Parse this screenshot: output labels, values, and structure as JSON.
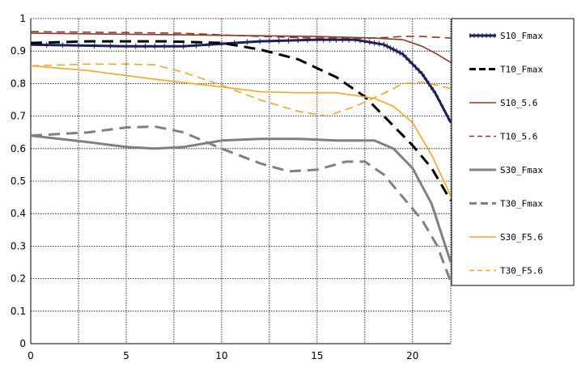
{
  "chart_data": {
    "type": "line",
    "title": "",
    "xlabel": "",
    "ylabel": "",
    "xlim": [
      0,
      22
    ],
    "ylim": [
      0,
      1
    ],
    "x_ticks": [
      0,
      5,
      10,
      15,
      20
    ],
    "y_ticks": [
      0,
      0.1,
      0.2,
      0.3,
      0.4,
      0.5,
      0.6,
      0.7,
      0.8,
      0.9,
      1
    ],
    "x_tick_labels": [
      "0",
      "5",
      "10",
      "15",
      "20"
    ],
    "y_tick_labels": [
      "0",
      "0.1",
      "0.2",
      "0.3",
      "0.4",
      "0.5",
      "0.6",
      "0.7",
      "0.8",
      "0.9",
      "1"
    ],
    "grid": true,
    "legend_position": "right",
    "series": [
      {
        "name": "S10_Fmax",
        "color": "#1a1f5e",
        "style": "solid-marked",
        "points": [
          [
            0,
            0.92
          ],
          [
            5,
            0.915
          ],
          [
            8,
            0.915
          ],
          [
            12,
            0.93
          ],
          [
            15,
            0.935
          ],
          [
            17,
            0.935
          ],
          [
            18.5,
            0.92
          ],
          [
            19.5,
            0.89
          ],
          [
            20.5,
            0.83
          ],
          [
            21.2,
            0.77
          ],
          [
            22,
            0.68
          ]
        ]
      },
      {
        "name": "T10_Fmax",
        "color": "#000000",
        "style": "dash",
        "points": [
          [
            0,
            0.925
          ],
          [
            3,
            0.93
          ],
          [
            5,
            0.93
          ],
          [
            7,
            0.93
          ],
          [
            10,
            0.925
          ],
          [
            12,
            0.905
          ],
          [
            14,
            0.875
          ],
          [
            16,
            0.82
          ],
          [
            17.5,
            0.76
          ],
          [
            19,
            0.67
          ],
          [
            20,
            0.61
          ],
          [
            21,
            0.54
          ],
          [
            22,
            0.44
          ]
        ]
      },
      {
        "name": "S10_5.6",
        "color": "#8b3a2b",
        "style": "solid",
        "points": [
          [
            0,
            0.955
          ],
          [
            8,
            0.95
          ],
          [
            15,
            0.945
          ],
          [
            18,
            0.94
          ],
          [
            19.5,
            0.935
          ],
          [
            20.5,
            0.915
          ],
          [
            21.3,
            0.89
          ],
          [
            22,
            0.865
          ]
        ]
      },
      {
        "name": "T10_5.6",
        "color": "#8b3a2b",
        "style": "dash",
        "points": [
          [
            0,
            0.96
          ],
          [
            8,
            0.955
          ],
          [
            12,
            0.945
          ],
          [
            15,
            0.94
          ],
          [
            18,
            0.94
          ],
          [
            19.5,
            0.945
          ],
          [
            20.5,
            0.945
          ],
          [
            22,
            0.94
          ]
        ]
      },
      {
        "name": "S30_Fmax",
        "color": "#808080",
        "style": "solid-thick",
        "points": [
          [
            0,
            0.64
          ],
          [
            3,
            0.62
          ],
          [
            5,
            0.605
          ],
          [
            6.5,
            0.6
          ],
          [
            8,
            0.605
          ],
          [
            10,
            0.625
          ],
          [
            12,
            0.63
          ],
          [
            14,
            0.63
          ],
          [
            16,
            0.625
          ],
          [
            18,
            0.625
          ],
          [
            19,
            0.6
          ],
          [
            20,
            0.54
          ],
          [
            21,
            0.43
          ],
          [
            22,
            0.25
          ]
        ]
      },
      {
        "name": "T30_Fmax",
        "color": "#808080",
        "style": "dash-thick",
        "points": [
          [
            0,
            0.64
          ],
          [
            3,
            0.65
          ],
          [
            5,
            0.665
          ],
          [
            6.5,
            0.668
          ],
          [
            8,
            0.65
          ],
          [
            10,
            0.6
          ],
          [
            12,
            0.555
          ],
          [
            13.5,
            0.53
          ],
          [
            15,
            0.535
          ],
          [
            16.5,
            0.56
          ],
          [
            17.5,
            0.56
          ],
          [
            18.5,
            0.52
          ],
          [
            19.5,
            0.45
          ],
          [
            20.5,
            0.38
          ],
          [
            21.3,
            0.3
          ],
          [
            22,
            0.19
          ]
        ]
      },
      {
        "name": "S30_F5.6",
        "color": "#f5a623",
        "style": "solid",
        "points": [
          [
            0,
            0.855
          ],
          [
            3,
            0.84
          ],
          [
            5,
            0.825
          ],
          [
            7,
            0.81
          ],
          [
            10,
            0.79
          ],
          [
            12,
            0.775
          ],
          [
            14,
            0.772
          ],
          [
            16,
            0.772
          ],
          [
            18,
            0.755
          ],
          [
            19,
            0.73
          ],
          [
            20,
            0.68
          ],
          [
            21,
            0.58
          ],
          [
            22,
            0.455
          ]
        ]
      },
      {
        "name": "T30_F5.6",
        "color": "#f5a623",
        "style": "dash",
        "points": [
          [
            0,
            0.855
          ],
          [
            3,
            0.86
          ],
          [
            5,
            0.86
          ],
          [
            6.5,
            0.858
          ],
          [
            8,
            0.835
          ],
          [
            10,
            0.795
          ],
          [
            12,
            0.75
          ],
          [
            14,
            0.715
          ],
          [
            15.5,
            0.7
          ],
          [
            17,
            0.73
          ],
          [
            18.5,
            0.77
          ],
          [
            19.5,
            0.8
          ],
          [
            20.5,
            0.805
          ],
          [
            22,
            0.785
          ]
        ]
      }
    ]
  }
}
